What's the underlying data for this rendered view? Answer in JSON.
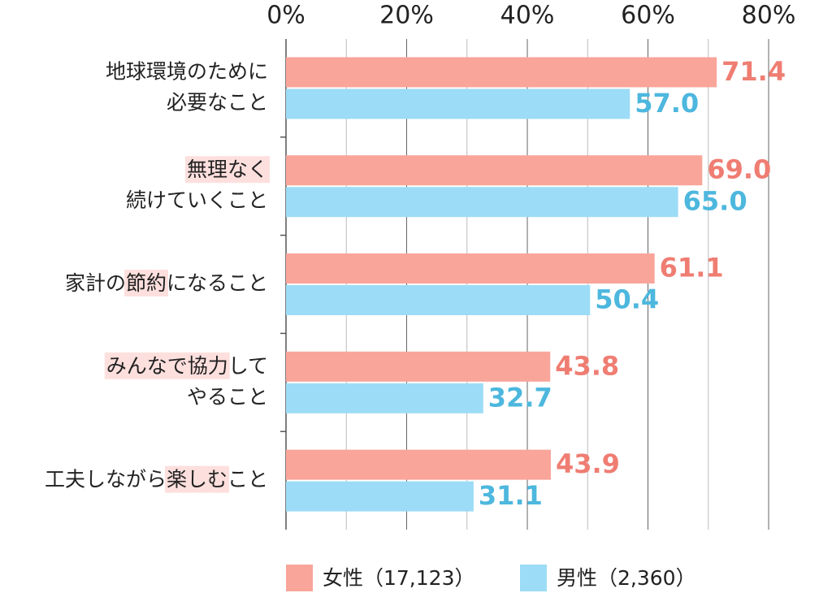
{
  "chart_data": {
    "type": "bar",
    "orientation": "horizontal",
    "categories": [
      [
        [
          {
            "text": "地球環境のために",
            "highlight": false
          }
        ],
        [
          {
            "text": "必要なこと",
            "highlight": false
          }
        ]
      ],
      [
        [
          {
            "text": "無理なく",
            "highlight": true
          }
        ],
        [
          {
            "text": "続けていくこと",
            "highlight": false
          }
        ]
      ],
      [
        [
          {
            "text": "家計の",
            "highlight": false
          },
          {
            "text": "節約",
            "highlight": true
          },
          {
            "text": "になること",
            "highlight": false
          }
        ]
      ],
      [
        [
          {
            "text": "みんなで協力",
            "highlight": true
          },
          {
            "text": "して",
            "highlight": false
          }
        ],
        [
          {
            "text": "やること",
            "highlight": false
          }
        ]
      ],
      [
        [
          {
            "text": "工夫しながら",
            "highlight": false
          },
          {
            "text": "楽しむ",
            "highlight": true
          },
          {
            "text": "こと",
            "highlight": false
          }
        ]
      ]
    ],
    "highlight_color": "#fde0de",
    "series": [
      {
        "name": "女性（17,123）",
        "color": "#f9a59a",
        "label_color": "#ef7d72",
        "values": [
          71.4,
          69.0,
          61.1,
          43.8,
          43.9
        ],
        "value_labels": [
          "71.4",
          "69.0",
          "61.1",
          "43.8",
          "43.9"
        ]
      },
      {
        "name": "男性（2,360）",
        "color": "#9cdcf6",
        "label_color": "#4db7de",
        "values": [
          57.0,
          65.0,
          50.4,
          32.7,
          31.1
        ],
        "value_labels": [
          "57.0",
          "65.0",
          "50.4",
          "32.7",
          "31.1"
        ]
      }
    ],
    "xlim": [
      0,
      80
    ],
    "xticks": [
      {
        "value": 0,
        "label": "0%"
      },
      {
        "value": 20,
        "label": "20%"
      },
      {
        "value": 40,
        "label": "40%"
      },
      {
        "value": 60,
        "label": "60%"
      },
      {
        "value": 80,
        "label": "80%"
      }
    ],
    "minor_xticks": [
      10,
      30,
      50,
      70
    ],
    "grid": true,
    "legend": "bottom"
  }
}
